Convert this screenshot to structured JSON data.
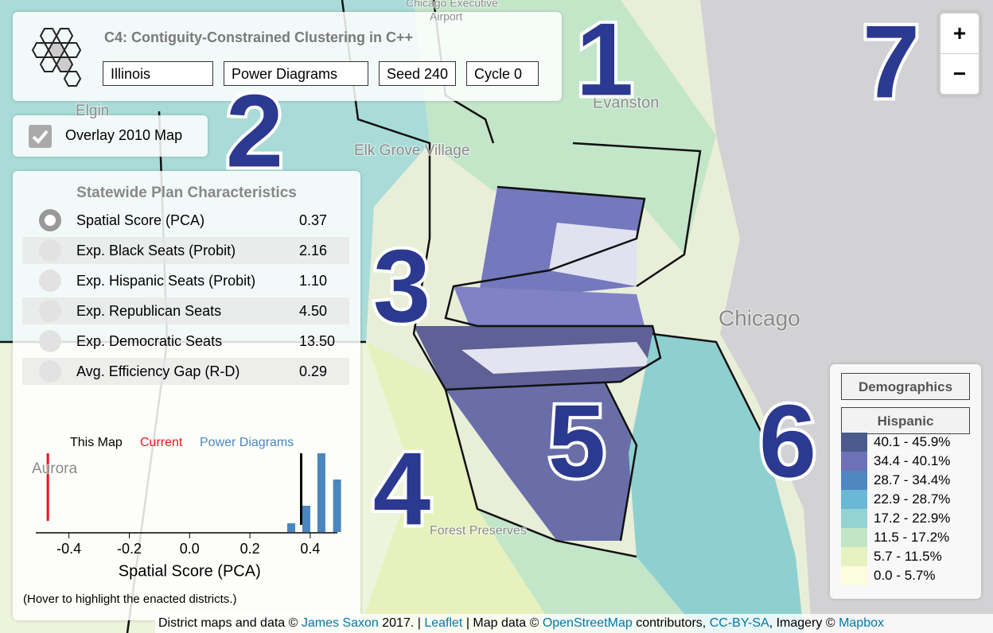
{
  "header": {
    "title": "C4: Contiguity-Constrained Clustering in C++",
    "selects": [
      "Illinois",
      "Power Diagrams",
      "Seed 240",
      "Cycle 0"
    ]
  },
  "overlay": {
    "label": "Overlay 2010 Map",
    "checked": true
  },
  "stats": {
    "title": "Statewide Plan Characteristics",
    "selected": 0,
    "rows": [
      {
        "label": "Spatial Score (PCA)",
        "value": "0.37"
      },
      {
        "label": "Exp. Black Seats (Probit)",
        "value": "2.16"
      },
      {
        "label": "Exp. Hispanic Seats (Probit)",
        "value": "1.10"
      },
      {
        "label": "Exp. Republican Seats",
        "value": "4.50"
      },
      {
        "label": "Exp. Democratic Seats",
        "value": "13.50"
      },
      {
        "label": "Avg. Efficiency Gap (R-D)",
        "value": "0.29"
      }
    ]
  },
  "chart_data": {
    "type": "histogram",
    "legend": [
      {
        "name": "This Map",
        "color": "#000000"
      },
      {
        "name": "Current",
        "color": "#e8141c"
      },
      {
        "name": "Power Diagrams",
        "color": "#4a86c0"
      }
    ],
    "x_label": "Spatial Score (PCA)",
    "xlim": [
      -0.51,
      0.49
    ],
    "xticks": [
      -0.4,
      -0.2,
      {
        "value": 0,
        "label": "0.0"
      },
      0.2,
      0.4
    ],
    "ylim": [
      0,
      9
    ],
    "x": [
      0.337,
      0.387,
      0.437,
      0.489
    ],
    "values": [
      1,
      3,
      9,
      6
    ],
    "this_map": 0.37,
    "current": -0.47,
    "note": "(Hover to highlight the enacted districts.)"
  },
  "legend": {
    "buttons": [
      "Demographics",
      "Hispanic"
    ],
    "items": [
      {
        "label": "40.1 - 45.9%",
        "color": "#4b5b8e"
      },
      {
        "label": "34.4 - 40.1%",
        "color": "#6d72b8"
      },
      {
        "label": "28.7 - 34.4%",
        "color": "#4f87c1"
      },
      {
        "label": "22.9 - 28.7%",
        "color": "#6cb7d6"
      },
      {
        "label": "17.2 - 22.9%",
        "color": "#93d3d1"
      },
      {
        "label": "11.5 - 17.2%",
        "color": "#c2e5c6"
      },
      {
        "label": "5.7 - 11.5%",
        "color": "#e7f2c0"
      },
      {
        "label": "0.0 - 5.7%",
        "color": "#fcfcdf"
      }
    ]
  },
  "zoom": {
    "in": "+",
    "out": "−"
  },
  "markers": [
    "1",
    "2",
    "3",
    "4",
    "5",
    "6",
    "7"
  ],
  "map_labels": [
    "Chicago",
    "Evanston",
    "Elk Grove Village",
    "Elgin",
    "Aurora",
    "Forest Preserves",
    "Chicago Executive",
    "Airport"
  ],
  "attribution": [
    "District maps and data © ",
    "James Saxon",
    " 2017. | ",
    "Leaflet",
    " | Map data © ",
    "OpenStreetMap",
    " contributors, ",
    "CC-BY-SA",
    ", Imagery © ",
    "Mapbox"
  ]
}
